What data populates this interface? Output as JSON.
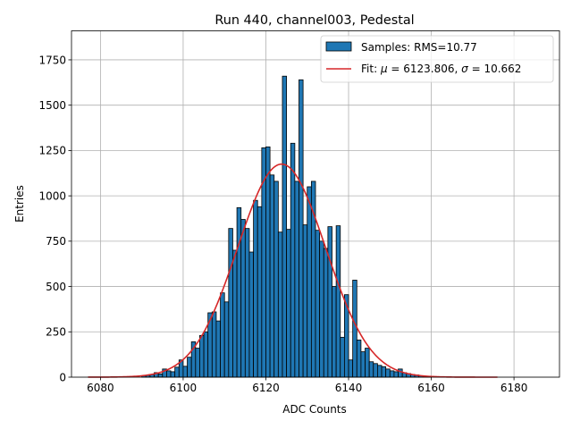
{
  "chart_data": {
    "type": "bar",
    "title": "Run 440, channel003, Pedestal",
    "xlabel": "ADC Counts",
    "ylabel": "Entries",
    "xlim": [
      6073,
      6191
    ],
    "ylim": [
      0,
      1910
    ],
    "xticks": [
      6080,
      6100,
      6120,
      6140,
      6160,
      6180
    ],
    "yticks": [
      0,
      250,
      500,
      750,
      1000,
      1250,
      1500,
      1750
    ],
    "grid": true,
    "legend_position": "top-right",
    "colors": {
      "bars": "#1f77b4",
      "bar_edge": "#000000",
      "fit": "#d62728",
      "grid": "#b0b0b0"
    },
    "histogram": {
      "name": "Samples: RMS=10.77",
      "bin_width": 1,
      "bins": [
        [
          6090,
          8
        ],
        [
          6091,
          10
        ],
        [
          6092,
          15
        ],
        [
          6093,
          25
        ],
        [
          6094,
          18
        ],
        [
          6095,
          45
        ],
        [
          6096,
          35
        ],
        [
          6097,
          30
        ],
        [
          6098,
          55
        ],
        [
          6099,
          95
        ],
        [
          6100,
          60
        ],
        [
          6101,
          110
        ],
        [
          6102,
          195
        ],
        [
          6103,
          160
        ],
        [
          6104,
          230
        ],
        [
          6105,
          250
        ],
        [
          6106,
          355
        ],
        [
          6107,
          360
        ],
        [
          6108,
          310
        ],
        [
          6109,
          465
        ],
        [
          6110,
          415
        ],
        [
          6111,
          820
        ],
        [
          6112,
          700
        ],
        [
          6113,
          935
        ],
        [
          6114,
          870
        ],
        [
          6115,
          820
        ],
        [
          6116,
          690
        ],
        [
          6117,
          975
        ],
        [
          6118,
          940
        ],
        [
          6119,
          1265
        ],
        [
          6120,
          1270
        ],
        [
          6121,
          1115
        ],
        [
          6122,
          1080
        ],
        [
          6123,
          800
        ],
        [
          6124,
          1660
        ],
        [
          6125,
          815
        ],
        [
          6126,
          1290
        ],
        [
          6127,
          1080
        ],
        [
          6128,
          1640
        ],
        [
          6129,
          840
        ],
        [
          6130,
          1050
        ],
        [
          6131,
          1080
        ],
        [
          6132,
          810
        ],
        [
          6133,
          750
        ],
        [
          6134,
          710
        ],
        [
          6135,
          830
        ],
        [
          6136,
          500
        ],
        [
          6137,
          835
        ],
        [
          6138,
          220
        ],
        [
          6139,
          455
        ],
        [
          6140,
          95
        ],
        [
          6141,
          535
        ],
        [
          6142,
          205
        ],
        [
          6143,
          140
        ],
        [
          6144,
          160
        ],
        [
          6145,
          85
        ],
        [
          6146,
          75
        ],
        [
          6147,
          65
        ],
        [
          6148,
          58
        ],
        [
          6149,
          45
        ],
        [
          6150,
          35
        ],
        [
          6151,
          30
        ],
        [
          6152,
          45
        ],
        [
          6153,
          25
        ],
        [
          6154,
          20
        ],
        [
          6155,
          15
        ],
        [
          6156,
          12
        ],
        [
          6157,
          8
        ],
        [
          6158,
          5
        ],
        [
          6159,
          3
        ]
      ]
    },
    "fit": {
      "name": "Fit: μ = 6123.806, σ = 10.662",
      "name_parts": {
        "prefix": "Fit: ",
        "mu_symbol": "μ",
        "mu_value": " = 6123.806, ",
        "sigma_symbol": "σ",
        "sigma_value": " = 10.662"
      },
      "type": "gaussian",
      "mu": 6123.806,
      "sigma": 10.662,
      "amplitude": 1175,
      "x_range": [
        6077,
        6176
      ]
    }
  }
}
